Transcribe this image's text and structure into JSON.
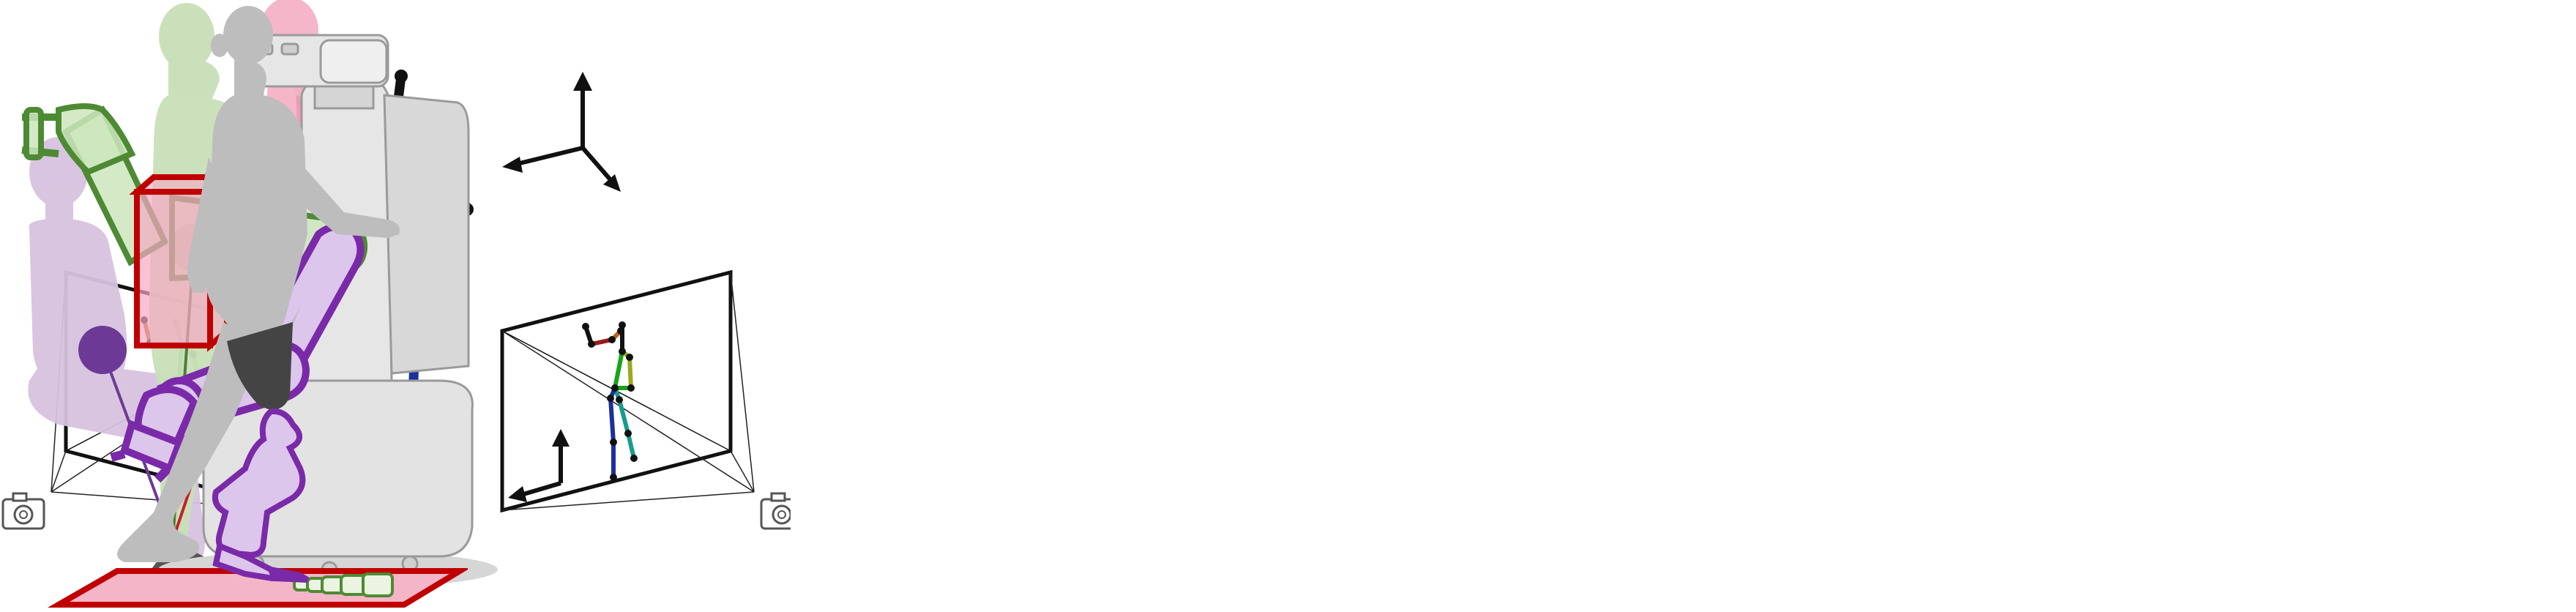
{
  "panels": [
    {
      "id": "multiview-skeleton",
      "icons": [
        "camera-icon",
        "camera-icon",
        "axes-icon"
      ]
    },
    {
      "id": "human-pendulum",
      "icons": [
        "center-of-mass-icon"
      ]
    },
    {
      "id": "robot-arm",
      "icons": [
        "robot-icon"
      ]
    },
    {
      "id": "prosthetic-leg",
      "icons": [
        "foot-contact-icon"
      ]
    }
  ],
  "colors": {
    "skeleton_black": "#111111",
    "bone_brown": "#b5651d",
    "bone_red": "#9b1b1b",
    "bone_olive": "#9aaa1e",
    "bone_green": "#19a319",
    "bone_teal": "#179c8c",
    "bone_blue": "#1c2f9e",
    "pendulum_purple": "#6c3a96",
    "pendulum_green": "#4e7e3a",
    "pendulum_red": "#c4202a",
    "silhouette_purple": "#d7c2df",
    "silhouette_green": "#c8dfb8",
    "silhouette_pink": "#f5b5c8",
    "robot_gray": "#dcdcdc",
    "box_red": "#c00000",
    "box_fill": "#f7a8c3",
    "arm_purple": "#7a2aa8",
    "arm_purple_fill": "#dcc6ec",
    "arm_green": "#4e8a34",
    "arm_green_fill": "#cde6bd",
    "walker_gray": "#bdbdbd",
    "socket_dark": "#444444",
    "floor_fill": "#f5b5c8"
  }
}
